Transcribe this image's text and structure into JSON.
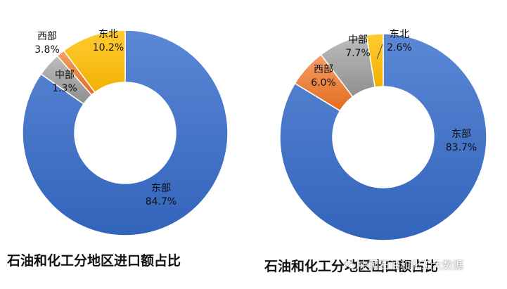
{
  "chart_data": [
    {
      "type": "pie",
      "caption": "石油和化工分地区进口额占比",
      "categories": [
        "东部",
        "西部",
        "中部",
        "东北"
      ],
      "values": [
        84.7,
        3.8,
        1.3,
        10.2
      ],
      "value_labels": [
        "84.7%",
        "3.8%",
        "1.3%",
        "10.2%"
      ],
      "colors": [
        "#4472C4",
        "#A5A5A5",
        "#ED7D31",
        "#FFC000"
      ]
    },
    {
      "type": "pie",
      "caption": "石油和化工分地区出口额占比",
      "categories": [
        "东部",
        "西部",
        "中部",
        "东北"
      ],
      "values": [
        83.7,
        6.0,
        7.7,
        2.6
      ],
      "value_labels": [
        "83.7%",
        "6.0%",
        "7.7%",
        "2.6%"
      ],
      "colors": [
        "#4472C4",
        "#ED7D31",
        "#A5A5A5",
        "#FFC000"
      ]
    }
  ],
  "watermark": "中国石油和化工大数据"
}
